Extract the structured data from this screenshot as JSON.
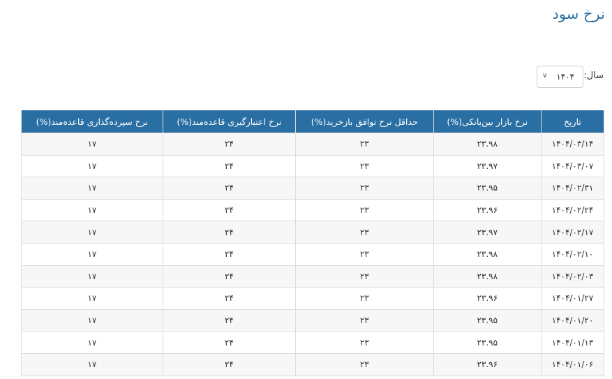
{
  "page": {
    "title": "نرخ سود"
  },
  "filter": {
    "label": "سال:",
    "year": "۱۴۰۴"
  },
  "table": {
    "headers": [
      "تاریخ",
      "نرخ بازار بین‌بانکی(%)",
      "حداقل نرخ توافق بازخرید(%)",
      "نرخ اعتبارگیری قاعده‌مند(%)",
      "نرخ سپرده‌گذاری قاعده‌مند(%)"
    ],
    "rows": [
      [
        "۱۴۰۴/۰۳/۱۴",
        "۲۳.۹۸",
        "۲۳",
        "۲۴",
        "۱۷"
      ],
      [
        "۱۴۰۴/۰۳/۰۷",
        "۲۳.۹۷",
        "۲۳",
        "۲۴",
        "۱۷"
      ],
      [
        "۱۴۰۴/۰۲/۳۱",
        "۲۳.۹۵",
        "۲۳",
        "۲۴",
        "۱۷"
      ],
      [
        "۱۴۰۴/۰۲/۲۴",
        "۲۳.۹۶",
        "۲۳",
        "۲۴",
        "۱۷"
      ],
      [
        "۱۴۰۴/۰۲/۱۷",
        "۲۳.۹۷",
        "۲۳",
        "۲۴",
        "۱۷"
      ],
      [
        "۱۴۰۴/۰۲/۱۰",
        "۲۳.۹۸",
        "۲۳",
        "۲۴",
        "۱۷"
      ],
      [
        "۱۴۰۴/۰۲/۰۳",
        "۲۳.۹۸",
        "۲۳",
        "۲۴",
        "۱۷"
      ],
      [
        "۱۴۰۴/۰۱/۲۷",
        "۲۳.۹۶",
        "۲۳",
        "۲۴",
        "۱۷"
      ],
      [
        "۱۴۰۴/۰۱/۲۰",
        "۲۳.۹۵",
        "۲۳",
        "۲۴",
        "۱۷"
      ],
      [
        "۱۴۰۴/۰۱/۱۳",
        "۲۳.۹۵",
        "۲۳",
        "۲۴",
        "۱۷"
      ],
      [
        "۱۴۰۴/۰۱/۰۶",
        "۲۳.۹۶",
        "۲۳",
        "۲۴",
        "۱۷"
      ]
    ]
  },
  "colors": {
    "header_bg": "#2a6fa3",
    "title": "#2a6fa3"
  }
}
